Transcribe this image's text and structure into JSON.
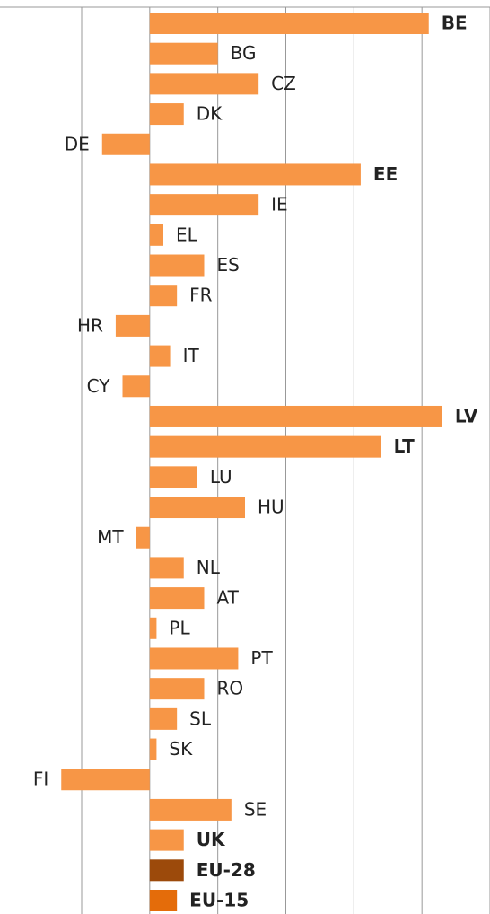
{
  "chart_data": {
    "type": "barh",
    "categories": [
      "BE",
      "BG",
      "CZ",
      "DK",
      "DE",
      "EE",
      "IE",
      "EL",
      "ES",
      "FR",
      "HR",
      "IT",
      "CY",
      "LV",
      "LT",
      "LU",
      "HU",
      "MT",
      "NL",
      "AT",
      "PL",
      "PT",
      "RO",
      "SL",
      "SK",
      "FI",
      "SE",
      "UK",
      "EU-28",
      "EU-15"
    ],
    "values": [
      4.1,
      1.0,
      1.6,
      0.5,
      -0.7,
      3.1,
      1.6,
      0.2,
      0.8,
      0.4,
      -0.5,
      0.3,
      -0.4,
      4.3,
      3.4,
      0.7,
      1.4,
      -0.2,
      0.5,
      0.8,
      0.1,
      1.3,
      0.8,
      0.4,
      0.1,
      -1.3,
      1.2,
      0.5,
      0.5,
      0.4
    ],
    "colors": [
      "#f79646",
      "#f79646",
      "#f79646",
      "#f79646",
      "#f79646",
      "#f79646",
      "#f79646",
      "#f79646",
      "#f79646",
      "#f79646",
      "#f79646",
      "#f79646",
      "#f79646",
      "#f79646",
      "#f79646",
      "#f79646",
      "#f79646",
      "#f79646",
      "#f79646",
      "#f79646",
      "#f79646",
      "#f79646",
      "#f79646",
      "#f79646",
      "#f79646",
      "#f79646",
      "#f79646",
      "#f79646",
      "#9c4a0b",
      "#e46c0a"
    ],
    "label_bold": [
      true,
      false,
      false,
      false,
      false,
      true,
      false,
      false,
      false,
      false,
      false,
      false,
      false,
      true,
      true,
      false,
      false,
      false,
      false,
      false,
      false,
      false,
      false,
      false,
      false,
      false,
      false,
      true,
      true,
      true
    ],
    "xlim": [
      -2.2,
      5
    ],
    "xticks": [
      -1,
      0,
      1,
      2,
      3,
      4,
      5
    ],
    "grid": true
  }
}
